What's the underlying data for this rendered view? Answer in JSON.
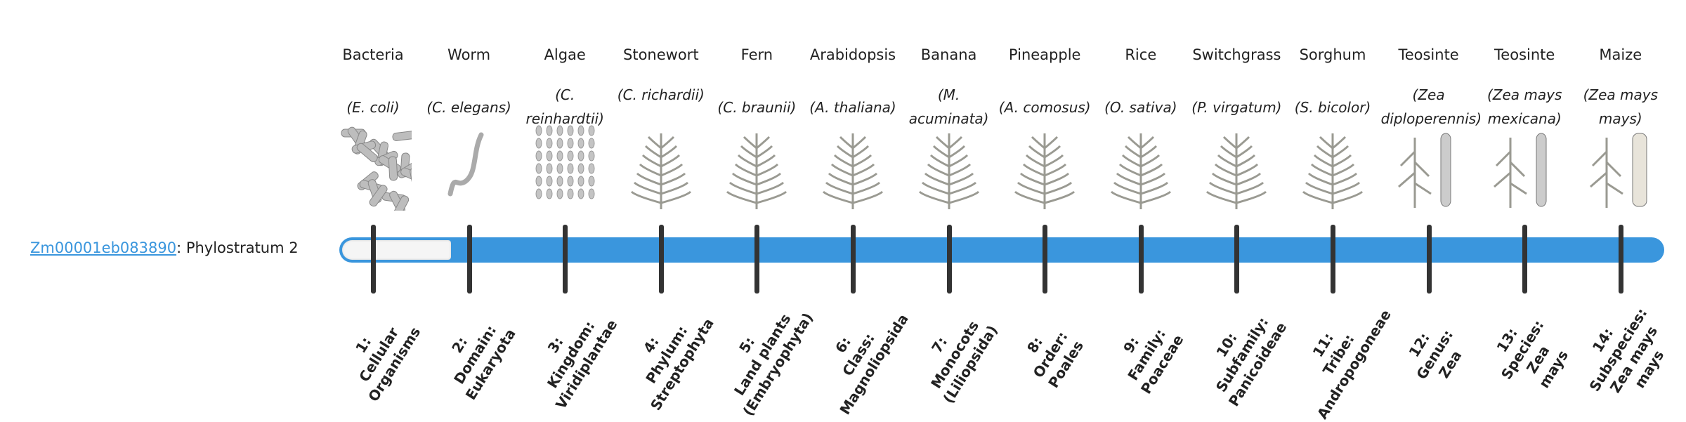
{
  "gene": {
    "id": "Zm00001eb083890",
    "suffix": ": Phylostratum 2"
  },
  "phylostratum": 2,
  "colors": {
    "bar": "#3a96dd",
    "tick": "#333333",
    "link": "#3a96dd"
  },
  "organisms": [
    {
      "common": "Bacteria",
      "species": "(E. coli)",
      "icon": "bacteria-icon",
      "stratum": [
        "1:",
        "Cellular",
        "Organisms"
      ]
    },
    {
      "common": "Worm",
      "species": "(C. elegans)",
      "icon": "worm-icon",
      "stratum": [
        "2:",
        "Domain:",
        "Eukaryota"
      ]
    },
    {
      "common": "Algae",
      "species": "(C. reinhardtii)",
      "icon": "algae-icon",
      "stratum": [
        "3:",
        "Kingdom:",
        "Viridiplantae"
      ]
    },
    {
      "common": "Stonewort",
      "species": "(C. richardii)",
      "icon": "stonewort-icon",
      "stratum": [
        "4:",
        "Phylum:",
        "Streptophyta"
      ]
    },
    {
      "common": "Fern",
      "species": "(C. braunii)",
      "icon": "fern-icon",
      "stratum": [
        "5:",
        "Land plants",
        "(Embryophyta)"
      ]
    },
    {
      "common": "Arabidopsis",
      "species": "(A. thaliana)",
      "icon": "arabidopsis-icon",
      "stratum": [
        "6:",
        "Class:",
        "Magnoliopsida"
      ]
    },
    {
      "common": "Banana",
      "species": "(M. acuminata)",
      "icon": "banana-plant-icon",
      "stratum": [
        "7:",
        "Monocots",
        "(Liliopsida)"
      ]
    },
    {
      "common": "Pineapple",
      "species": "(A. comosus)",
      "icon": "pineapple-icon",
      "stratum": [
        "8:",
        "Order:",
        "Poales"
      ]
    },
    {
      "common": "Rice",
      "species": "(O. sativa)",
      "icon": "rice-icon",
      "stratum": [
        "9:",
        "Family:",
        "Poaceae"
      ]
    },
    {
      "common": "Switchgrass",
      "species": "(P. virgatum)",
      "icon": "switchgrass-icon",
      "stratum": [
        "10:",
        "Subfamily:",
        "Panicoideae"
      ]
    },
    {
      "common": "Sorghum",
      "species": "(S. bicolor)",
      "icon": "sorghum-icon",
      "stratum": [
        "11:",
        "Tribe:",
        "Andropogoneae"
      ]
    },
    {
      "common": "Teosinte",
      "species": "(Zea diploperennis)",
      "icon": "teosinte-icon",
      "stratum": [
        "12:",
        "Genus:",
        "Zea"
      ]
    },
    {
      "common": "Teosinte",
      "species": "(Zea mays mexicana)",
      "icon": "teosinte-mexicana-icon",
      "stratum": [
        "13:",
        "Species:",
        "Zea",
        "mays"
      ]
    },
    {
      "common": "Maize",
      "species": "(Zea mays mays)",
      "icon": "maize-icon",
      "stratum": [
        "14:",
        "Subspecies:",
        "Zea mays",
        "mays"
      ]
    }
  ]
}
